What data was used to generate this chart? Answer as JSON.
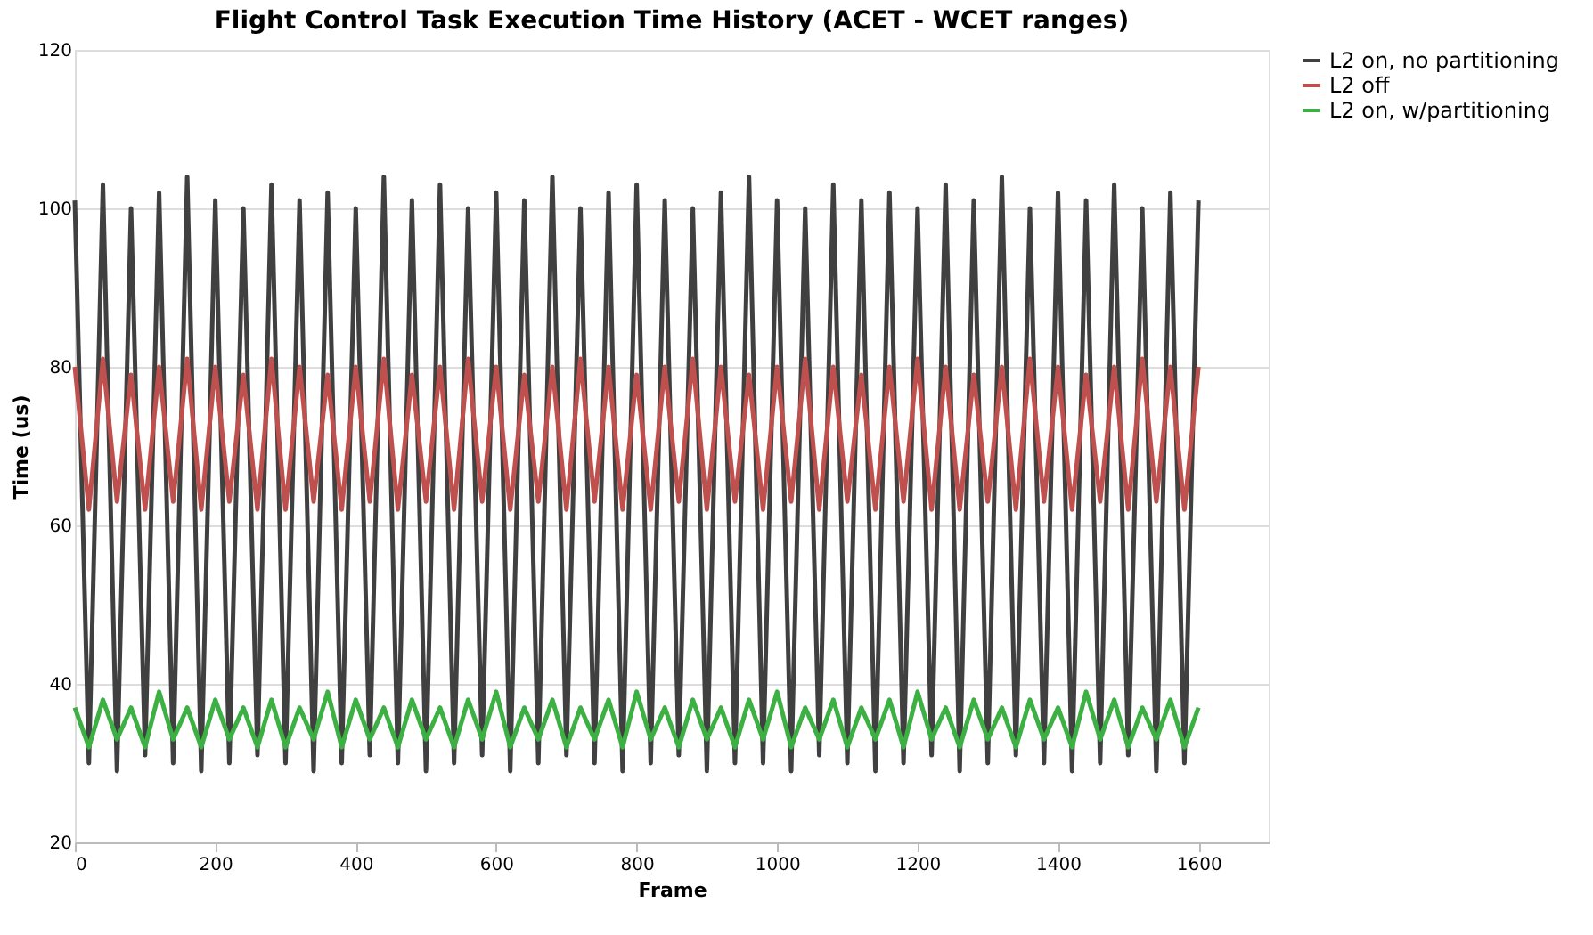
{
  "chart_data": {
    "type": "line",
    "title": "Flight Control Task Execution Time History (ACET - WCET ranges)",
    "xlabel": "Frame",
    "ylabel": "Time (us)",
    "x": [
      0,
      20,
      40,
      60,
      80,
      100,
      120,
      140,
      160,
      180,
      200,
      220,
      240,
      260,
      280,
      300,
      320,
      340,
      360,
      380,
      400,
      420,
      440,
      460,
      480,
      500,
      520,
      540,
      560,
      580,
      600,
      620,
      640,
      660,
      680,
      700,
      720,
      740,
      760,
      780,
      800,
      820,
      840,
      860,
      880,
      900,
      920,
      940,
      960,
      980,
      1000,
      1020,
      1040,
      1060,
      1080,
      1100,
      1120,
      1140,
      1160,
      1180,
      1200,
      1220,
      1240,
      1260,
      1280,
      1300,
      1320,
      1340,
      1360,
      1380,
      1400,
      1420,
      1440,
      1460,
      1480,
      1500,
      1520,
      1540,
      1560,
      1580,
      1600
    ],
    "series": [
      {
        "name": "L2 on, no partitioning",
        "color": "#404040",
        "values": [
          101,
          30,
          103,
          29,
          100,
          31,
          102,
          30,
          104,
          29,
          101,
          30,
          100,
          31,
          103,
          30,
          101,
          29,
          102,
          30,
          100,
          31,
          104,
          30,
          101,
          29,
          103,
          30,
          100,
          31,
          102,
          29,
          101,
          30,
          104,
          31,
          100,
          30,
          102,
          29,
          103,
          30,
          101,
          31,
          100,
          29,
          102,
          30,
          104,
          30,
          101,
          29,
          100,
          31,
          103,
          30,
          101,
          29,
          102,
          30,
          100,
          31,
          103,
          29,
          101,
          30,
          104,
          31,
          100,
          30,
          102,
          29,
          101,
          30,
          103,
          31,
          100,
          29,
          102,
          30,
          101
        ]
      },
      {
        "name": "L2 off",
        "color": "#c0504d",
        "values": [
          80,
          62,
          81,
          63,
          79,
          62,
          80,
          63,
          81,
          62,
          80,
          63,
          79,
          62,
          81,
          62,
          80,
          63,
          79,
          62,
          80,
          63,
          81,
          62,
          79,
          63,
          80,
          62,
          81,
          63,
          80,
          62,
          79,
          63,
          80,
          62,
          81,
          63,
          80,
          62,
          79,
          62,
          80,
          63,
          81,
          62,
          80,
          63,
          79,
          62,
          80,
          63,
          81,
          62,
          80,
          63,
          79,
          62,
          80,
          63,
          81,
          62,
          80,
          62,
          79,
          63,
          80,
          62,
          81,
          63,
          80,
          62,
          79,
          63,
          80,
          62,
          81,
          63,
          80,
          62,
          80
        ]
      },
      {
        "name": "L2 on, w/partitioning",
        "color": "#3cb043",
        "values": [
          37,
          32,
          38,
          33,
          37,
          32,
          39,
          33,
          37,
          32,
          38,
          33,
          37,
          32,
          38,
          32,
          37,
          33,
          39,
          32,
          38,
          33,
          37,
          32,
          38,
          33,
          37,
          32,
          38,
          33,
          39,
          32,
          37,
          33,
          38,
          32,
          37,
          33,
          38,
          32,
          39,
          33,
          37,
          32,
          38,
          33,
          37,
          32,
          38,
          33,
          39,
          32,
          37,
          33,
          38,
          32,
          37,
          33,
          38,
          32,
          39,
          33,
          37,
          32,
          38,
          33,
          37,
          32,
          38,
          33,
          37,
          32,
          39,
          33,
          38,
          32,
          37,
          33,
          38,
          32,
          37
        ]
      }
    ],
    "xlim": [
      0,
      1700
    ],
    "xticks": [
      0,
      200,
      400,
      600,
      800,
      1000,
      1200,
      1400,
      1600
    ],
    "ylim": [
      20,
      120
    ],
    "yticks": [
      20,
      40,
      60,
      80,
      100,
      120
    ],
    "grid": "y",
    "legend": "right",
    "marker": "none",
    "line_style": "solid"
  }
}
